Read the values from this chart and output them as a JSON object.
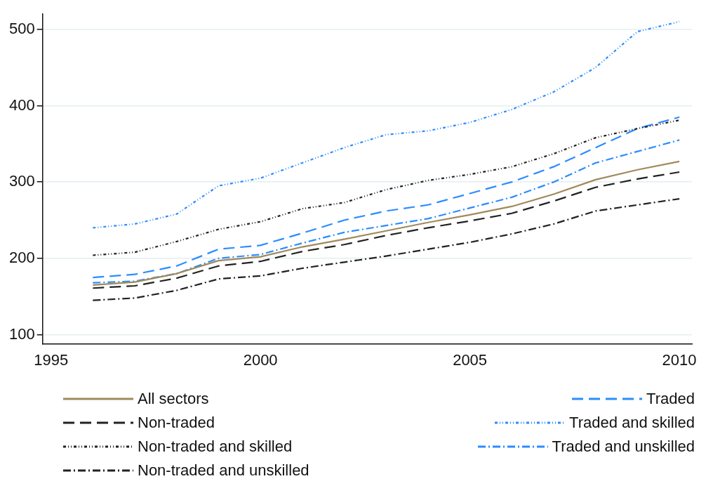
{
  "chart_data": {
    "type": "line",
    "x": [
      1996,
      1997,
      1998,
      1999,
      2000,
      2001,
      2002,
      2003,
      2004,
      2005,
      2006,
      2007,
      2008,
      2009,
      2010
    ],
    "xlim": [
      1994.8,
      2010.3
    ],
    "xticks": [
      1995,
      2000,
      2005,
      2010
    ],
    "ylim": [
      88,
      520
    ],
    "yticks": [
      100,
      200,
      300,
      400,
      500
    ],
    "grid": "y",
    "legend": "bottom",
    "marker": "none",
    "series": [
      {
        "name": "All sectors",
        "color": "#a08a5a",
        "line_style": "solid",
        "values": [
          165,
          169,
          180,
          197,
          202,
          215,
          225,
          236,
          247,
          257,
          268,
          284,
          303,
          316,
          327
        ]
      },
      {
        "name": "Non-traded",
        "color": "#222222",
        "line_style": "dashed",
        "values": [
          161,
          164,
          174,
          190,
          196,
          209,
          218,
          230,
          240,
          249,
          259,
          275,
          293,
          304,
          313
        ]
      },
      {
        "name": "Non-traded and skilled",
        "color": "#222222",
        "line_style": "dotted",
        "values": [
          204,
          208,
          222,
          238,
          248,
          265,
          273,
          290,
          302,
          310,
          320,
          337,
          358,
          370,
          381
        ]
      },
      {
        "name": "Non-traded and unskilled",
        "color": "#222222",
        "line_style": "dashdot",
        "values": [
          145,
          148,
          158,
          173,
          177,
          187,
          195,
          203,
          212,
          221,
          232,
          245,
          262,
          270,
          278
        ]
      },
      {
        "name": "Traded",
        "color": "#2b8cff",
        "line_style": "dashed",
        "values": [
          175,
          179,
          190,
          212,
          217,
          233,
          250,
          262,
          270,
          285,
          300,
          320,
          345,
          370,
          385
        ]
      },
      {
        "name": "Traded and skilled",
        "color": "#2b8cff",
        "line_style": "dotted",
        "values": [
          240,
          245,
          258,
          295,
          305,
          325,
          345,
          362,
          367,
          378,
          395,
          418,
          450,
          497,
          510
        ]
      },
      {
        "name": "Traded and unskilled",
        "color": "#2b8cff",
        "line_style": "dashdot",
        "values": [
          168,
          170,
          180,
          200,
          205,
          220,
          234,
          243,
          252,
          266,
          280,
          300,
          325,
          340,
          355
        ]
      }
    ]
  }
}
